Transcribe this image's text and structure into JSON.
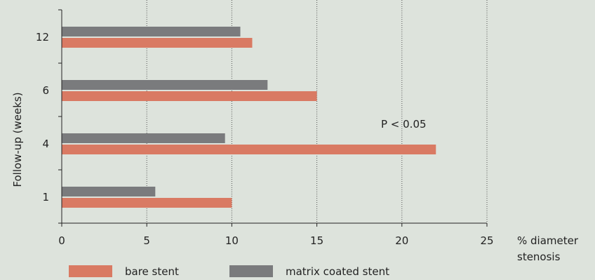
{
  "chart_data": {
    "type": "bar",
    "orientation": "horizontal",
    "categories": [
      "1",
      "4",
      "6",
      "12"
    ],
    "series": [
      {
        "name": "bare stent",
        "values": [
          10,
          22,
          15,
          11.2
        ],
        "color": "#d97a63"
      },
      {
        "name": "matrix coated stent",
        "values": [
          5.5,
          9.6,
          12.1,
          10.5
        ],
        "color": "#7a7b7d"
      }
    ],
    "xlabel": [
      "% diameter",
      "stenosis"
    ],
    "ylabel": "Follow-up (weeks)",
    "xlim": [
      0,
      25
    ],
    "xticks": [
      0,
      5,
      10,
      15,
      20,
      25
    ],
    "grid": "vertical-dotted",
    "legend_position": "bottom",
    "annotations": [
      {
        "text": "P < 0.05",
        "category": "4"
      }
    ]
  }
}
